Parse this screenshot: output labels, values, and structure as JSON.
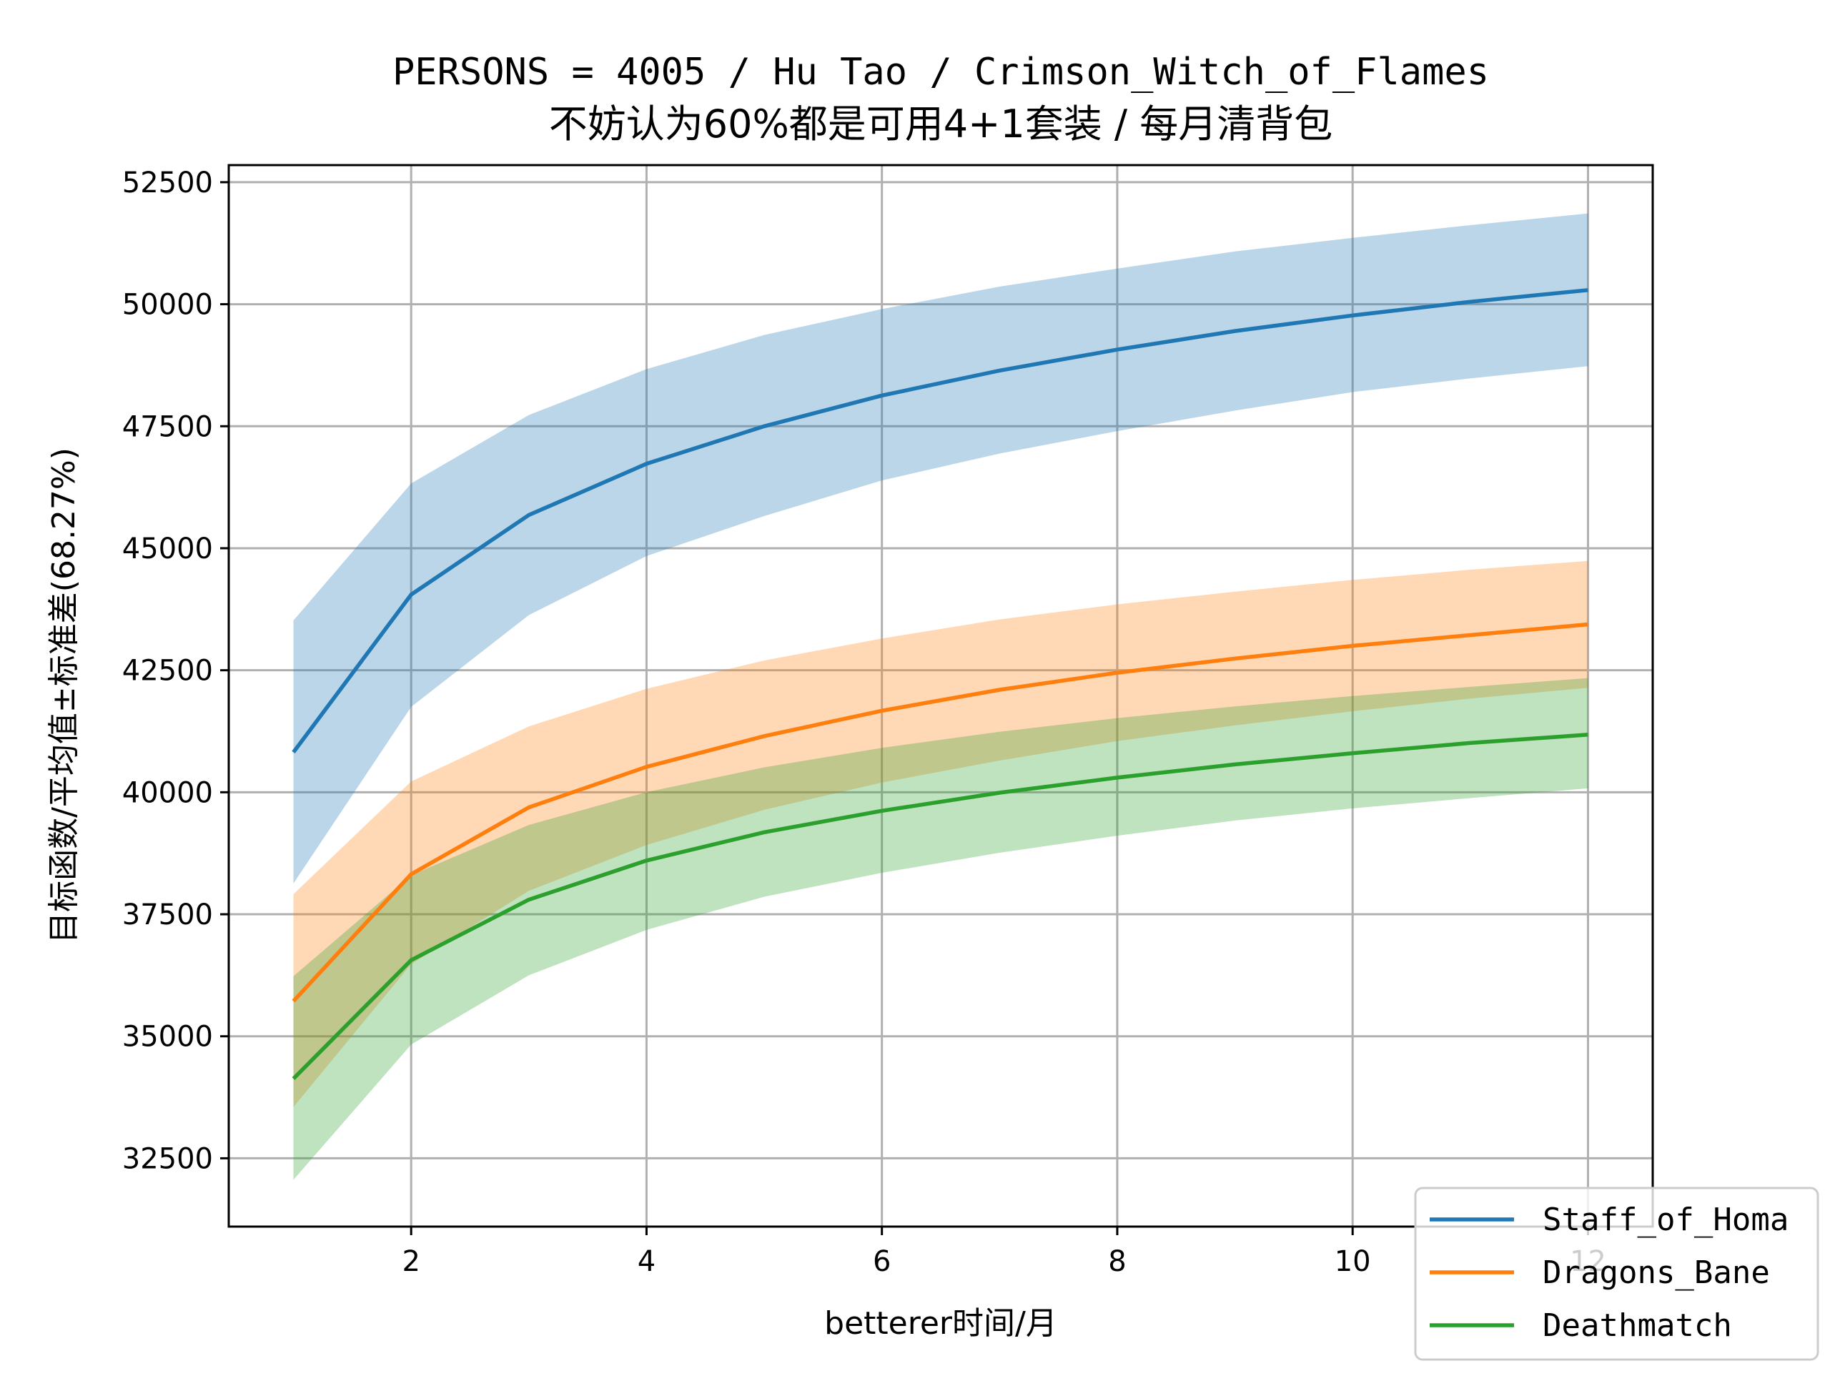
{
  "chart_data": {
    "type": "line",
    "title": "PERSONS = 4005 / Hu Tao / Crimson_Witch_of_Flames",
    "subtitle": "不妨认为60%都是可用4+1套装 / 每月清背包",
    "xlabel": "betterer时间/月",
    "ylabel": "目标函数/平均值±标准差(68.27%)",
    "x": [
      1,
      2,
      3,
      4,
      5,
      6,
      7,
      8,
      9,
      10,
      11,
      12
    ],
    "xlim": [
      0.45,
      12.55
    ],
    "ylim": [
      31100,
      52850
    ],
    "x_ticks": [
      2,
      4,
      6,
      8,
      10,
      12
    ],
    "x_tick_labels": [
      "2",
      "4",
      "6",
      "8",
      "10",
      "12"
    ],
    "y_ticks": [
      32500,
      35000,
      37500,
      40000,
      42500,
      45000,
      47500,
      50000,
      52500
    ],
    "y_tick_labels": [
      "32500",
      "35000",
      "37500",
      "40000",
      "42500",
      "45000",
      "47500",
      "50000",
      "52500"
    ],
    "grid": true,
    "legend_position": "lower-right",
    "series": [
      {
        "name": "Staff_of_Homa",
        "color": "#1f77b4",
        "band_color": "#a8c9e3",
        "mean": [
          40820,
          44050,
          45680,
          46730,
          47500,
          48130,
          48640,
          49070,
          49450,
          49770,
          50050,
          50290
        ],
        "upper": [
          43520,
          46330,
          47730,
          48670,
          49370,
          49900,
          50360,
          50730,
          51080,
          51360,
          51620,
          51860
        ],
        "lower": [
          38130,
          41750,
          43630,
          44840,
          45660,
          46390,
          46940,
          47400,
          47820,
          48200,
          48480,
          48730
        ]
      },
      {
        "name": "Dragons_Bane",
        "color": "#ff7f0e",
        "band_color": "#ffc999",
        "mean": [
          35720,
          38320,
          39690,
          40520,
          41150,
          41670,
          42100,
          42450,
          42740,
          43000,
          43220,
          43440
        ],
        "upper": [
          37910,
          40220,
          41350,
          42120,
          42700,
          43150,
          43540,
          43850,
          44110,
          44350,
          44560,
          44740
        ],
        "lower": [
          33550,
          36480,
          37980,
          38920,
          39640,
          40200,
          40650,
          41050,
          41370,
          41660,
          41920,
          42140
        ]
      },
      {
        "name": "Deathmatch",
        "color": "#2ca02c",
        "band_color": "#a6dba6",
        "mean": [
          34130,
          36560,
          37800,
          38600,
          39180,
          39620,
          39990,
          40300,
          40570,
          40800,
          41010,
          41180
        ],
        "upper": [
          36230,
          38300,
          39330,
          40000,
          40510,
          40910,
          41240,
          41520,
          41760,
          41970,
          42160,
          42340
        ],
        "lower": [
          32060,
          34830,
          36250,
          37180,
          37860,
          38350,
          38760,
          39110,
          39420,
          39670,
          39880,
          40080
        ]
      }
    ]
  }
}
